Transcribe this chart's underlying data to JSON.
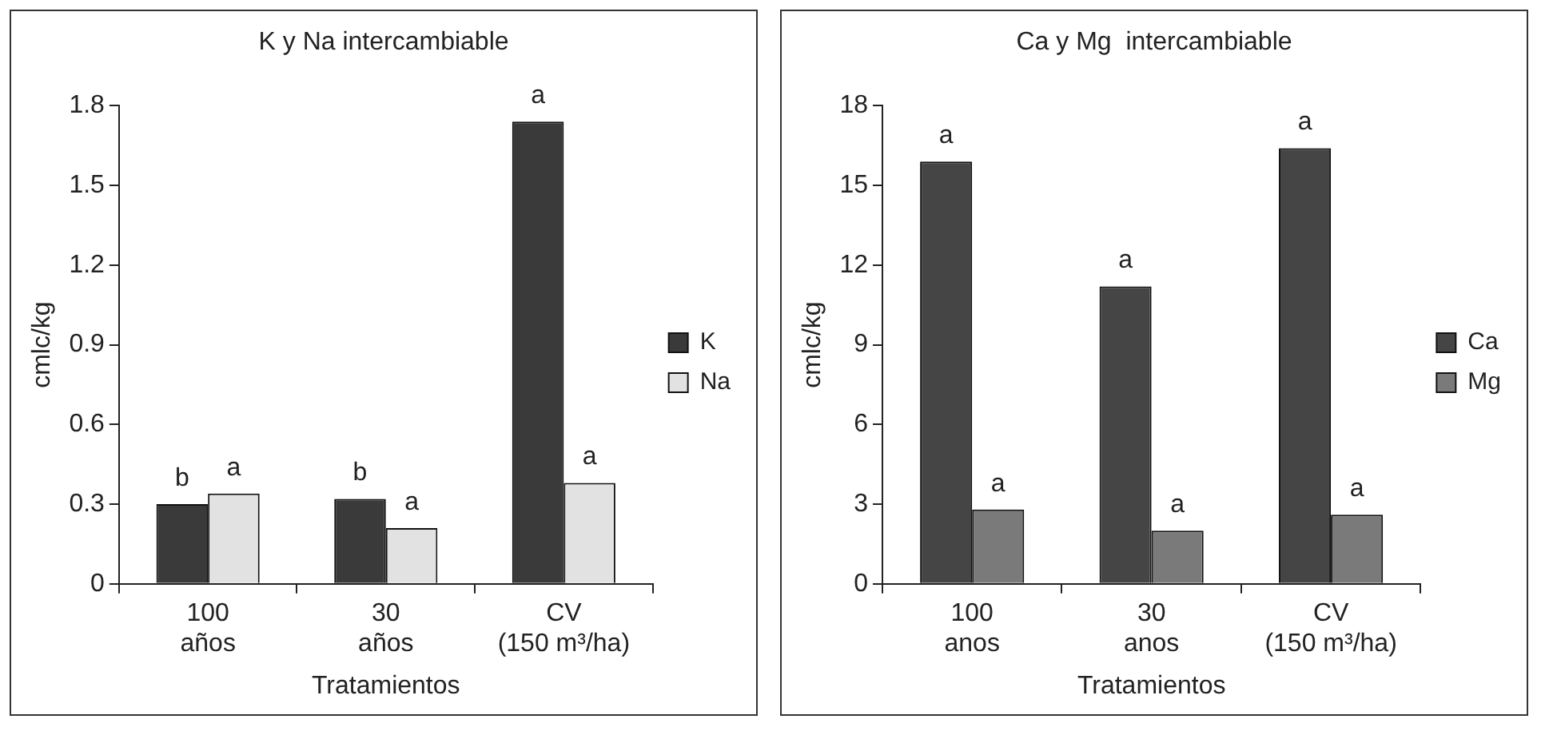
{
  "chart_data": [
    {
      "type": "bar",
      "title": "K y Na intercambiable",
      "xlabel": "Tratamientos",
      "ylabel": "cmlc/kg",
      "categories": [
        "100 años",
        "30 años",
        "CV (150 m³/ha)"
      ],
      "series": [
        {
          "name": "K",
          "color": "#3a3a3a",
          "values": [
            0.3,
            0.32,
            1.74
          ]
        },
        {
          "name": "Na",
          "color": "#e2e2e2",
          "values": [
            0.34,
            0.21,
            0.38
          ]
        }
      ],
      "ylim": [
        0,
        1.8
      ],
      "yticks": [
        0,
        0.3,
        0.6,
        0.9,
        1.2,
        1.5,
        1.8
      ],
      "grid": false,
      "legend": "right",
      "annotations": [
        {
          "text": "b",
          "x": "100 años",
          "y": 0.3
        },
        {
          "text": "a",
          "x": "100 años",
          "y": 0.34
        },
        {
          "text": "b",
          "x": "30 años",
          "y": 0.32
        },
        {
          "text": "a",
          "x": "30 años",
          "y": 0.21
        },
        {
          "text": "a",
          "x": "CV (150 m³/ha)",
          "y": 1.74
        },
        {
          "text": "a",
          "x": "CV (150 m³/ha)",
          "y": 0.38
        }
      ]
    },
    {
      "type": "bar",
      "title": "Ca y Mg  intercambiable",
      "xlabel": "Tratamientos",
      "ylabel": "cmlc/kg",
      "categories": [
        "100 anos",
        "30 anos",
        "CV (150 m³/ha)"
      ],
      "series": [
        {
          "name": "Ca",
          "color": "#454545",
          "values": [
            15.9,
            11.2,
            16.4
          ]
        },
        {
          "name": "Mg",
          "color": "#7a7a7a",
          "values": [
            2.8,
            2.0,
            2.6
          ]
        }
      ],
      "ylim": [
        0,
        18
      ],
      "yticks": [
        0,
        3,
        6,
        9,
        12,
        15,
        18
      ],
      "grid": false,
      "legend": "right",
      "annotations": [
        {
          "text": "a",
          "x": "100 anos",
          "y": 15.9
        },
        {
          "text": "a",
          "x": "100 anos",
          "y": 2.8
        },
        {
          "text": "a",
          "x": "30 anos",
          "y": 11.2
        },
        {
          "text": "a",
          "x": "30 anos",
          "y": 2.0
        },
        {
          "text": "a",
          "x": "CV (150 m³/ha)",
          "y": 16.4
        },
        {
          "text": "a",
          "x": "CV (150 m³/ha)",
          "y": 2.6
        }
      ]
    }
  ]
}
